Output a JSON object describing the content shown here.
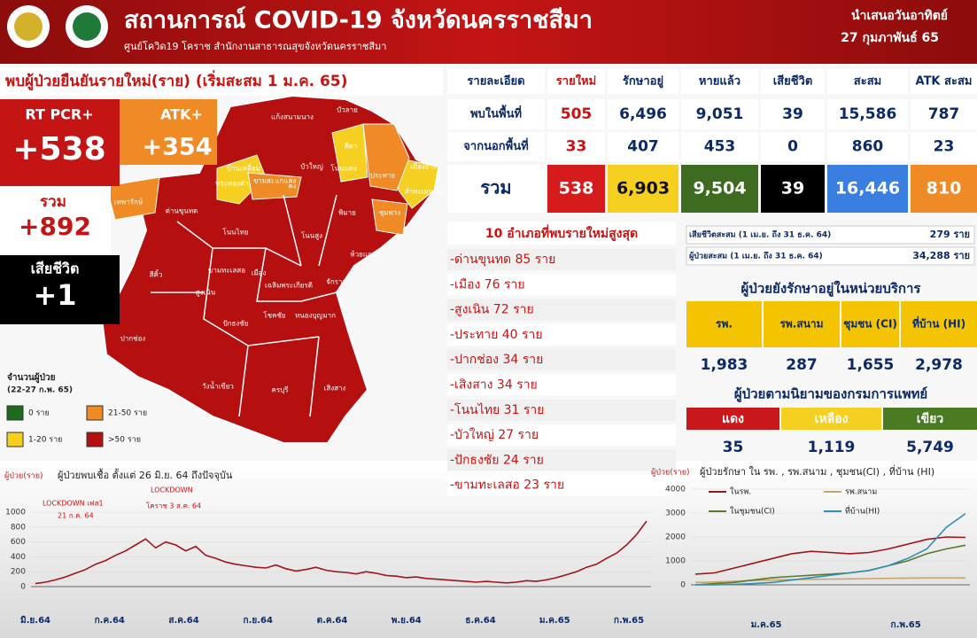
{
  "header": {
    "title": "สถานการณ์ COVID-19 จังหวัดนครราชสีมา",
    "subtitle": "ศูนย์โควิด19 โคราช สำนักงานสาธารณสุขจังหวัดนครราชสีมา",
    "day": "นำเสนอวันอาทิตย์",
    "date": "27 กุมภาพันธ์ 65"
  },
  "summary": {
    "banner": "พบผู้ป่วยยืนยันรายใหม่(ราย) (เริ่มสะสม 1 ม.ค. 65)",
    "rtpcr_label": "RT PCR+",
    "rtpcr_value": "+538",
    "atk_label": "ATK+",
    "atk_value": "+354",
    "total_label": "รวม",
    "total_value": "+892",
    "death_label": "เสียชีวิต",
    "death_value": "+1"
  },
  "map": {
    "districts": [
      "แก้งสนามนาง",
      "บัวลาย",
      "บ้านเหลื่อม",
      "สีดา",
      "บัวใหญ่",
      "โนนแดง",
      "ประทาย",
      "คง",
      "ขามสะแกแสง",
      "พระทองคำ",
      "เมืองยาง",
      "ลำทะเมนชัย",
      "ชุมพวง",
      "เทพารักษ์",
      "ด่านขุนทด",
      "โนนไทย",
      "โนนสูง",
      "พิมาย",
      "ห้วยแถลง",
      "สีคิ้ว",
      "ขามทะเลสอ",
      "เมือง",
      "จักราช",
      "สูงเนิน",
      "เฉลิมพระเกียรติ",
      "ปักธงชัย",
      "โชคชัย",
      "หนองบุญมาก",
      "ปากช่อง",
      "วังน้ำเขียว",
      "ครบุรี",
      "เสิงสาง"
    ],
    "legend_title": "จำนวนผู้ป่วย",
    "legend_period": "(22-27 ก.พ. 65)",
    "legend": [
      {
        "label": "0 ราย",
        "color": "#1e6b1e"
      },
      {
        "label": "21-50 ราย",
        "color": "#f08a24"
      },
      {
        "label": "1-20 ราย",
        "color": "#f5d020"
      },
      {
        "label": ">50 ราย",
        "color": "#b5100f"
      }
    ]
  },
  "table": {
    "header": [
      "รายละเอียด",
      "รายใหม่",
      "รักษาอยู่",
      "หายแล้ว",
      "เสียชีวิต",
      "สะสม",
      "ATK สะสม"
    ],
    "rows": [
      [
        "พบในพื้นที่",
        "505",
        "6,496",
        "9,051",
        "39",
        "15,586",
        "787"
      ],
      [
        "จากนอกพื้นที่",
        "33",
        "407",
        "453",
        "0",
        "860",
        "23"
      ],
      [
        "รวม",
        "538",
        "6,903",
        "9,504",
        "39",
        "16,446",
        "810"
      ]
    ],
    "total_colors": [
      "#ffffff",
      "#d51b1b",
      "#f5d020",
      "#3d6b1f",
      "#000000",
      "#3a7ee0",
      "#f08a24"
    ]
  },
  "top10": {
    "title": "10 อำเภอที่พบรายใหม่สูงสุด",
    "items": [
      "-ด่านขุนทด 85 ราย",
      "-เมือง 76 ราย",
      "-สูงเนิน 72 ราย",
      "-ประทาย 40 ราย",
      "-ปากช่อง 34 ราย",
      "-เสิงสาง 34 ราย",
      "-โนนไทย 31 ราย",
      "-บัวใหญ่ 27 ราย",
      "-ปักธงชัย 24 ราย",
      "-ขามทะเลสอ 23 ราย"
    ]
  },
  "cumulative": [
    {
      "label": "เสียชีวิตสะสม (1 เม.ย. ถึง 31 ธ.ค. 64)",
      "value": "279 ราย"
    },
    {
      "label": "ผู้ป่วยสะสม (1 เม.ย. ถึง 31 ธ.ค. 64)",
      "value": "34,288 ราย"
    }
  ],
  "care_units": {
    "title": "ผู้ป่วยยังรักษาอยู่ในหน่วยบริการ",
    "header": [
      "รพ.",
      "รพ.สนาม",
      "ชุมชน (CI)",
      "ที่บ้าน (HI)"
    ],
    "values": [
      "1,983",
      "287",
      "1,655",
      "2,978"
    ]
  },
  "severity": {
    "title": "ผู้ป่วยตามนิยามของกรมการแพทย์",
    "header": [
      "แดง",
      "เหลือง",
      "เขียว"
    ],
    "colors": [
      "#c8181b",
      "#f5d020",
      "#4a7a22"
    ],
    "values": [
      "35",
      "1,119",
      "5,749"
    ]
  },
  "chart_data": [
    {
      "type": "line",
      "title": "ผู้ป่วยพบเชื้อ ตั้งแต่ 26 มิ.ย. 64 ถึงปัจจุบัน",
      "y_label": "ผู้ป่วย(ราย)",
      "color": "#a0141a",
      "annotations": [
        "LOCKDOWN เฟส1",
        "21 ก.ค. 64",
        "LOCKDOWN",
        "โคราช 3 ส.ค. 64"
      ],
      "x_labels": [
        "มิ.ย.64",
        "ก.ค.64",
        "ส.ค.64",
        "ก.ย.64",
        "ต.ค.64",
        "พ.ย.64",
        "ธ.ค.64",
        "ม.ค.65",
        "ก.พ.65"
      ],
      "values": [
        40,
        60,
        90,
        130,
        180,
        230,
        300,
        350,
        420,
        480,
        560,
        640,
        520,
        600,
        560,
        480,
        540,
        420,
        380,
        330,
        300,
        280,
        260,
        250,
        290,
        240,
        210,
        230,
        260,
        220,
        200,
        190,
        170,
        200,
        180,
        150,
        140,
        120,
        130,
        110,
        100,
        90,
        80,
        70,
        60,
        70,
        60,
        50,
        60,
        80,
        70,
        90,
        120,
        160,
        200,
        260,
        300,
        380,
        450,
        560,
        700,
        880
      ],
      "ylim": [
        0,
        1000
      ],
      "yticks": [
        0,
        200,
        400,
        600,
        800,
        1000
      ]
    },
    {
      "type": "line",
      "title": "ผู้ป่วยรักษา ใน รพ. , รพ.สนาม , ชุมชน(CI) , ที่บ้าน (HI)",
      "y_label": "ผู้ป่วย(ราย)",
      "x_labels": [
        "ม.ค.65",
        "ก.พ.65"
      ],
      "series": [
        {
          "name": "ในรพ.",
          "color": "#a0141a",
          "values": [
            450,
            500,
            700,
            900,
            1100,
            1300,
            1400,
            1350,
            1300,
            1350,
            1500,
            1700,
            1900,
            2000,
            1983
          ]
        },
        {
          "name": "รพ.สนาม",
          "color": "#c9a46a",
          "values": [
            100,
            120,
            150,
            180,
            200,
            220,
            230,
            240,
            250,
            260,
            270,
            280,
            290,
            290,
            287
          ]
        },
        {
          "name": "ในชุมชน(CI)",
          "color": "#5a7a2a",
          "values": [
            0,
            50,
            100,
            200,
            300,
            350,
            400,
            450,
            500,
            600,
            800,
            1000,
            1300,
            1500,
            1655
          ]
        },
        {
          "name": "ที่บ้าน(HI)",
          "color": "#2f8fb0",
          "values": [
            0,
            0,
            20,
            50,
            100,
            200,
            300,
            400,
            500,
            600,
            800,
            1100,
            1500,
            2400,
            2978
          ]
        }
      ],
      "ylim": [
        0,
        4000
      ],
      "yticks": [
        0,
        1000,
        2000,
        3000,
        4000
      ]
    }
  ]
}
